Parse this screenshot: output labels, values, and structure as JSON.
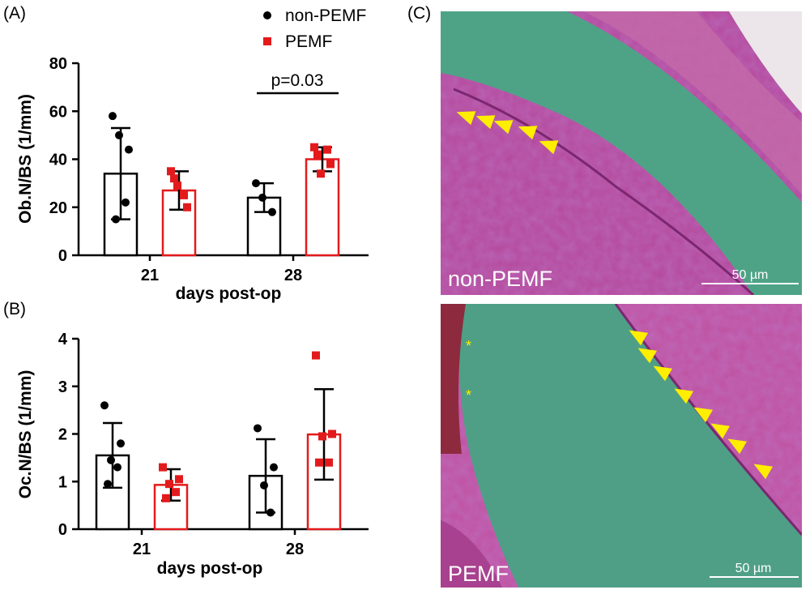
{
  "legend": [
    {
      "label": "non-PEMF",
      "color": "#000000",
      "marker": "circle"
    },
    {
      "label": "PEMF",
      "color": "#e31a1c",
      "marker": "square"
    }
  ],
  "panels": {
    "A": {
      "label": "(A)",
      "annotation": "p=0.03"
    },
    "B": {
      "label": "(B)"
    },
    "C": {
      "label": "(C)",
      "top": {
        "label": "non-PEMF",
        "scale_text": "50 µm",
        "arrowheads": 5
      },
      "bottom": {
        "label": "PEMF",
        "scale_text": "50 µm",
        "arrowheads": 8,
        "asterisk": "*"
      }
    }
  },
  "chart_data": [
    {
      "type": "bar",
      "panel": "A",
      "categories": [
        "21",
        "28"
      ],
      "xlabel": "days post-op",
      "ylabel": "Ob.N/BS (1/mm)",
      "ylim": [
        0,
        80
      ],
      "yticks": [
        0,
        20,
        40,
        60,
        80
      ],
      "series": [
        {
          "name": "non-PEMF",
          "color": "#000000",
          "values": [
            34,
            24
          ],
          "sd": [
            19,
            6
          ],
          "points": [
            [
              58,
              44,
              50,
              22,
              15
            ],
            [
              30,
              18,
              24
            ]
          ]
        },
        {
          "name": "PEMF",
          "color": "#e31a1c",
          "values": [
            27,
            40
          ],
          "sd": [
            8,
            5
          ],
          "points": [
            [
              35,
              20,
              29,
              25,
              32
            ],
            [
              45,
              38,
              34,
              44,
              42
            ]
          ]
        }
      ],
      "annotation": {
        "text": "p=0.03",
        "between": "28"
      }
    },
    {
      "type": "bar",
      "panel": "B",
      "categories": [
        "21",
        "28"
      ],
      "xlabel": "days post-op",
      "ylabel": "Oc.N/BS (1/mm)",
      "ylim": [
        0,
        4
      ],
      "yticks": [
        0,
        1,
        2,
        3,
        4
      ],
      "series": [
        {
          "name": "non-PEMF",
          "color": "#000000",
          "values": [
            1.55,
            1.12
          ],
          "sd": [
            0.68,
            0.77
          ],
          "points": [
            [
              2.6,
              1.8,
              1.45,
              1.3,
              0.95
            ],
            [
              2.12,
              1.3,
              0.92,
              0.35
            ]
          ]
        },
        {
          "name": "PEMF",
          "color": "#e31a1c",
          "values": [
            0.93,
            1.99
          ],
          "sd": [
            0.33,
            0.95
          ],
          "points": [
            [
              1.3,
              1.05,
              0.95,
              0.78,
              0.65
            ],
            [
              3.65,
              2.0,
              1.95,
              1.4,
              1.4
            ]
          ]
        }
      ]
    }
  ]
}
